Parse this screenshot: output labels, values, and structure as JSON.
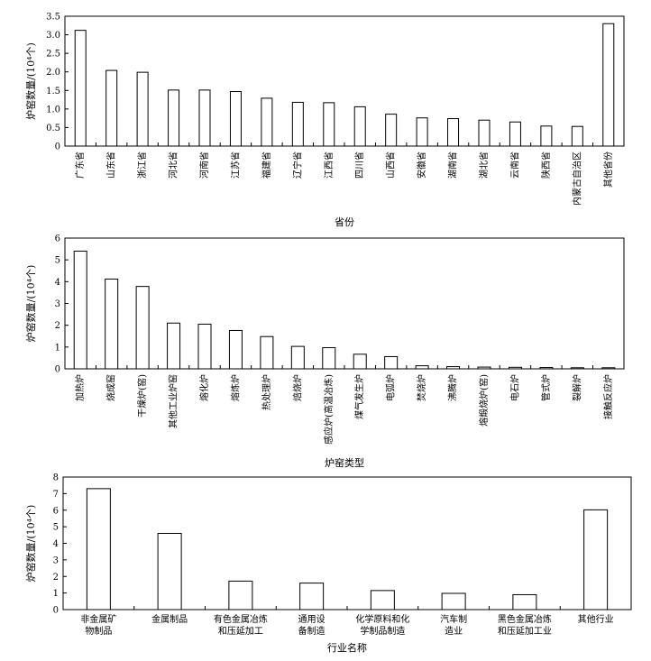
{
  "chart_data": [
    {
      "type": "bar",
      "title": "",
      "xlabel": "省份",
      "ylabel": "炉窑数量/(10⁴个)",
      "ylim": [
        0,
        3.5
      ],
      "yticks": [
        "0",
        "0.5",
        "1.0",
        "1.5",
        "2.0",
        "2.5",
        "3.0",
        "3.5"
      ],
      "categories": [
        "广东省",
        "山东省",
        "浙江省",
        "河北省",
        "河南省",
        "江苏省",
        "福建省",
        "辽宁省",
        "江西省",
        "四川省",
        "山西省",
        "安徽省",
        "湖南省",
        "湖北省",
        "云南省",
        "陕西省",
        "内蒙古自治区",
        "其他省份"
      ],
      "values": [
        3.12,
        2.04,
        1.99,
        1.51,
        1.51,
        1.47,
        1.29,
        1.18,
        1.17,
        1.06,
        0.86,
        0.76,
        0.74,
        0.7,
        0.65,
        0.54,
        0.53,
        3.3
      ]
    },
    {
      "type": "bar",
      "title": "",
      "xlabel": "炉窑类型",
      "ylabel": "炉窑数量/(10⁴个)",
      "ylim": [
        0,
        6
      ],
      "yticks": [
        "0",
        "1",
        "2",
        "3",
        "4",
        "5",
        "6"
      ],
      "categories": [
        "加热炉",
        "烧成窑",
        "干燥炉(窑)",
        "其他工业炉窑",
        "熔化炉",
        "熔炼炉",
        "热处理炉",
        "焙烧炉",
        "感应炉(高温冶炼)",
        "煤气发生炉",
        "电弧炉",
        "焚烧炉",
        "沸腾炉",
        "熔煅烧炉(窑)",
        "电石炉",
        "管式炉",
        "裂解炉",
        "接触反应炉"
      ],
      "values": [
        5.4,
        4.12,
        3.78,
        2.1,
        2.05,
        1.76,
        1.48,
        1.03,
        0.97,
        0.67,
        0.56,
        0.14,
        0.1,
        0.08,
        0.07,
        0.06,
        0.05,
        0.05
      ]
    },
    {
      "type": "bar",
      "title": "",
      "xlabel": "行业名称",
      "ylabel": "炉窑数量/(10⁴个)",
      "ylim": [
        0,
        8
      ],
      "yticks": [
        "0",
        "1",
        "2",
        "3",
        "4",
        "5",
        "6",
        "7",
        "8"
      ],
      "categories": [
        [
          "非金属矿",
          "物制品"
        ],
        [
          "金属制品"
        ],
        [
          "有色金属冶炼",
          "和压延加工"
        ],
        [
          "通用设",
          "备制造"
        ],
        [
          "化学原料和化",
          "学制品制造"
        ],
        [
          "汽车制",
          "造业"
        ],
        [
          "黑色金属冶炼",
          "和压延加工业"
        ],
        [
          "其他行业"
        ]
      ],
      "values": [
        7.3,
        4.6,
        1.72,
        1.6,
        1.15,
        0.98,
        0.9,
        6.02
      ]
    }
  ]
}
